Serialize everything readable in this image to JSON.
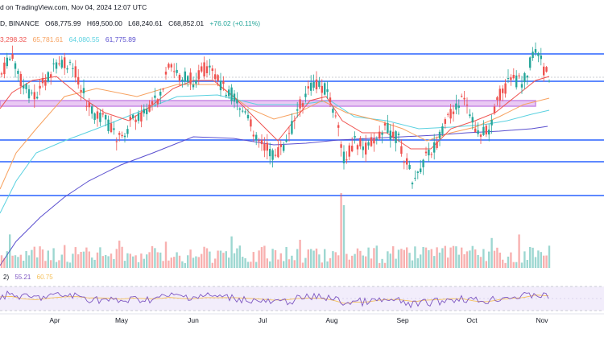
{
  "header": {
    "source": "d on TradingView.com, Nov 04, 2024 12:07 UTC",
    "exchange": "D, BINANCE",
    "open": "O68,775.99",
    "high": "H69,500.00",
    "low": "L68,240.61",
    "close": "C68,852.01",
    "change": "+76.02 (+0.11%)",
    "ma_values": [
      "3,298.32",
      "65,781.61",
      "64,080.55",
      "61,775.89"
    ]
  },
  "rsi_legend": {
    "label": "2)",
    "value": "55.21",
    "ma": "60.75"
  },
  "colors": {
    "up": "#26a69a",
    "down": "#ef5350",
    "ma20": "#ef5350",
    "ma50": "#f7a15f",
    "ma100": "#5ad1e0",
    "ma200": "#5a4fcf",
    "hline": "#2962ff",
    "zone": "#c889e6",
    "rsi": "#7e57c2",
    "rsi_ma": "#f5c05a"
  },
  "chart_data": {
    "type": "candlestick",
    "x_months": [
      "Apr",
      "May",
      "Jun",
      "Jul",
      "Aug",
      "Sep",
      "Oct",
      "Nov"
    ],
    "horizontal_levels_note": "price levels drawn as blue horizontal lines (no axis values visible)",
    "candles_ohlc_approx": [],
    "indicator": "RSI (14) with moving average"
  }
}
